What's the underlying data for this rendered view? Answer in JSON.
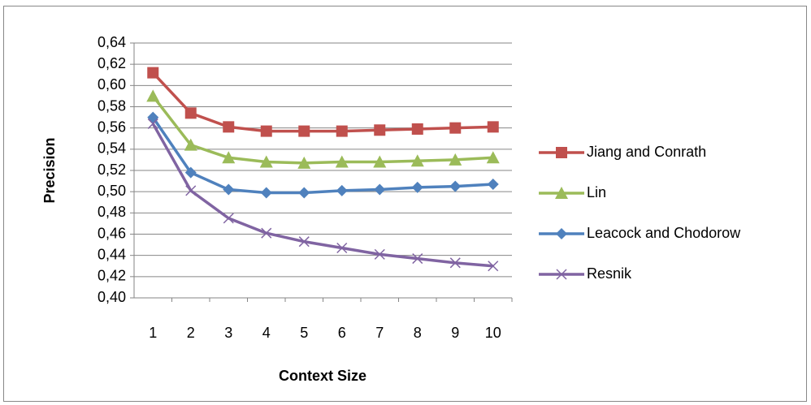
{
  "chart_data": {
    "type": "line",
    "x_label": "Context Size",
    "y_label": "Precision",
    "categories": [
      "1",
      "2",
      "3",
      "4",
      "5",
      "6",
      "7",
      "8",
      "9",
      "10"
    ],
    "series": [
      {
        "name": "Jiang and Conrath",
        "color": "#c0504d",
        "marker": "square",
        "values": [
          0.612,
          0.574,
          0.561,
          0.557,
          0.557,
          0.557,
          0.558,
          0.559,
          0.56,
          0.561
        ]
      },
      {
        "name": "Lin",
        "color": "#9bbb59",
        "marker": "triangle",
        "values": [
          0.59,
          0.544,
          0.532,
          0.528,
          0.527,
          0.528,
          0.528,
          0.529,
          0.53,
          0.532
        ]
      },
      {
        "name": "Leacock and Chodorow",
        "color": "#4f81bd",
        "marker": "diamond",
        "values": [
          0.57,
          0.518,
          0.502,
          0.499,
          0.499,
          0.501,
          0.502,
          0.504,
          0.505,
          0.507
        ]
      },
      {
        "name": "Resnik",
        "color": "#8064a2",
        "marker": "x",
        "values": [
          0.564,
          0.501,
          0.475,
          0.461,
          0.453,
          0.447,
          0.441,
          0.437,
          0.433,
          0.43
        ]
      }
    ],
    "ylim": [
      0.4,
      0.64
    ],
    "yticks": [
      {
        "value": 0.4,
        "label": "0,40"
      },
      {
        "value": 0.42,
        "label": "0,42"
      },
      {
        "value": 0.44,
        "label": "0,44"
      },
      {
        "value": 0.46,
        "label": "0,46"
      },
      {
        "value": 0.48,
        "label": "0,48"
      },
      {
        "value": 0.5,
        "label": "0,50"
      },
      {
        "value": 0.52,
        "label": "0,52"
      },
      {
        "value": 0.54,
        "label": "0,54"
      },
      {
        "value": 0.56,
        "label": "0,56"
      },
      {
        "value": 0.58,
        "label": "0,58"
      },
      {
        "value": 0.6,
        "label": "0,60"
      },
      {
        "value": 0.62,
        "label": "0,62"
      },
      {
        "value": 0.64,
        "label": "0,64"
      }
    ],
    "grid": true,
    "legend": "right"
  }
}
